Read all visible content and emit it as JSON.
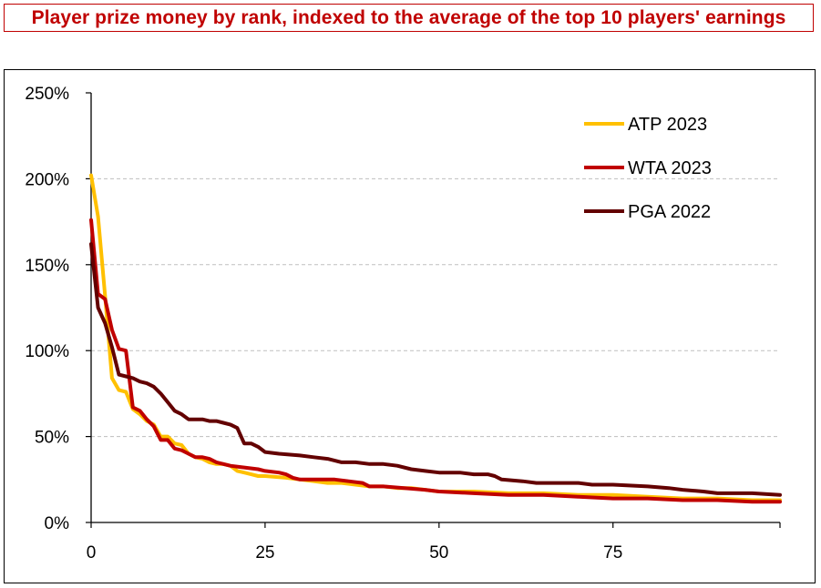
{
  "title": "Player prize money by rank, indexed to the average of the top 10 players' earnings",
  "chart_data": {
    "type": "line",
    "xlabel": "",
    "ylabel": "",
    "xlim": [
      0,
      99
    ],
    "ylim": [
      0,
      2.5
    ],
    "x_ticks": [
      0,
      25,
      50,
      75
    ],
    "x_tick_labels": [
      "0",
      "25",
      "50",
      "75"
    ],
    "y_ticks": [
      0,
      0.5,
      1.0,
      1.5,
      2.0,
      2.5
    ],
    "y_tick_labels": [
      "0%",
      "50%",
      "100%",
      "150%",
      "200%",
      "250%"
    ],
    "grid": "horizontal dashed",
    "legend_position": "top-right",
    "series": [
      {
        "name": "ATP 2023",
        "color": "#ffc000",
        "points": [
          [
            0,
            2.02
          ],
          [
            1,
            1.78
          ],
          [
            2,
            1.32
          ],
          [
            3,
            0.84
          ],
          [
            4,
            0.77
          ],
          [
            5,
            0.76
          ],
          [
            6,
            0.66
          ],
          [
            7,
            0.63
          ],
          [
            8,
            0.59
          ],
          [
            9,
            0.57
          ],
          [
            10,
            0.5
          ],
          [
            11,
            0.5
          ],
          [
            12,
            0.46
          ],
          [
            13,
            0.45
          ],
          [
            14,
            0.4
          ],
          [
            15,
            0.38
          ],
          [
            16,
            0.37
          ],
          [
            17,
            0.35
          ],
          [
            18,
            0.34
          ],
          [
            19,
            0.34
          ],
          [
            20,
            0.33
          ],
          [
            21,
            0.3
          ],
          [
            22,
            0.29
          ],
          [
            23,
            0.28
          ],
          [
            24,
            0.27
          ],
          [
            25,
            0.27
          ],
          [
            28,
            0.26
          ],
          [
            30,
            0.25
          ],
          [
            32,
            0.24
          ],
          [
            34,
            0.23
          ],
          [
            36,
            0.23
          ],
          [
            38,
            0.22
          ],
          [
            40,
            0.21
          ],
          [
            42,
            0.21
          ],
          [
            44,
            0.2
          ],
          [
            46,
            0.2
          ],
          [
            48,
            0.19
          ],
          [
            50,
            0.18
          ],
          [
            55,
            0.18
          ],
          [
            60,
            0.17
          ],
          [
            65,
            0.17
          ],
          [
            70,
            0.16
          ],
          [
            75,
            0.16
          ],
          [
            80,
            0.15
          ],
          [
            85,
            0.14
          ],
          [
            90,
            0.14
          ],
          [
            95,
            0.13
          ],
          [
            99,
            0.13
          ]
        ]
      },
      {
        "name": "WTA 2023",
        "color": "#c00000",
        "points": [
          [
            0,
            1.76
          ],
          [
            1,
            1.33
          ],
          [
            2,
            1.3
          ],
          [
            3,
            1.12
          ],
          [
            4,
            1.01
          ],
          [
            5,
            1.0
          ],
          [
            6,
            0.67
          ],
          [
            7,
            0.65
          ],
          [
            8,
            0.6
          ],
          [
            9,
            0.56
          ],
          [
            10,
            0.48
          ],
          [
            11,
            0.48
          ],
          [
            12,
            0.43
          ],
          [
            13,
            0.42
          ],
          [
            14,
            0.4
          ],
          [
            15,
            0.38
          ],
          [
            16,
            0.38
          ],
          [
            17,
            0.37
          ],
          [
            18,
            0.35
          ],
          [
            19,
            0.34
          ],
          [
            20,
            0.33
          ],
          [
            22,
            0.32
          ],
          [
            24,
            0.31
          ],
          [
            25,
            0.3
          ],
          [
            27,
            0.29
          ],
          [
            28,
            0.28
          ],
          [
            29,
            0.26
          ],
          [
            30,
            0.25
          ],
          [
            35,
            0.25
          ],
          [
            37,
            0.24
          ],
          [
            39,
            0.23
          ],
          [
            40,
            0.21
          ],
          [
            42,
            0.21
          ],
          [
            45,
            0.2
          ],
          [
            48,
            0.19
          ],
          [
            50,
            0.18
          ],
          [
            55,
            0.17
          ],
          [
            60,
            0.16
          ],
          [
            65,
            0.16
          ],
          [
            70,
            0.15
          ],
          [
            75,
            0.14
          ],
          [
            80,
            0.14
          ],
          [
            85,
            0.13
          ],
          [
            90,
            0.13
          ],
          [
            95,
            0.12
          ],
          [
            99,
            0.12
          ]
        ]
      },
      {
        "name": "PGA 2022",
        "color": "#630000",
        "points": [
          [
            0,
            1.62
          ],
          [
            1,
            1.25
          ],
          [
            2,
            1.16
          ],
          [
            3,
            1.02
          ],
          [
            4,
            0.86
          ],
          [
            5,
            0.85
          ],
          [
            6,
            0.84
          ],
          [
            7,
            0.82
          ],
          [
            8,
            0.81
          ],
          [
            9,
            0.79
          ],
          [
            10,
            0.75
          ],
          [
            11,
            0.7
          ],
          [
            12,
            0.65
          ],
          [
            13,
            0.63
          ],
          [
            14,
            0.6
          ],
          [
            15,
            0.6
          ],
          [
            16,
            0.6
          ],
          [
            17,
            0.59
          ],
          [
            18,
            0.59
          ],
          [
            19,
            0.58
          ],
          [
            20,
            0.57
          ],
          [
            21,
            0.55
          ],
          [
            22,
            0.46
          ],
          [
            23,
            0.46
          ],
          [
            24,
            0.44
          ],
          [
            25,
            0.41
          ],
          [
            27,
            0.4
          ],
          [
            30,
            0.39
          ],
          [
            32,
            0.38
          ],
          [
            34,
            0.37
          ],
          [
            36,
            0.35
          ],
          [
            38,
            0.35
          ],
          [
            40,
            0.34
          ],
          [
            42,
            0.34
          ],
          [
            44,
            0.33
          ],
          [
            46,
            0.31
          ],
          [
            48,
            0.3
          ],
          [
            50,
            0.29
          ],
          [
            53,
            0.29
          ],
          [
            55,
            0.28
          ],
          [
            57,
            0.28
          ],
          [
            58,
            0.27
          ],
          [
            59,
            0.25
          ],
          [
            62,
            0.24
          ],
          [
            64,
            0.23
          ],
          [
            70,
            0.23
          ],
          [
            72,
            0.22
          ],
          [
            75,
            0.22
          ],
          [
            80,
            0.21
          ],
          [
            83,
            0.2
          ],
          [
            85,
            0.19
          ],
          [
            88,
            0.18
          ],
          [
            90,
            0.17
          ],
          [
            95,
            0.17
          ],
          [
            99,
            0.16
          ]
        ]
      }
    ]
  }
}
